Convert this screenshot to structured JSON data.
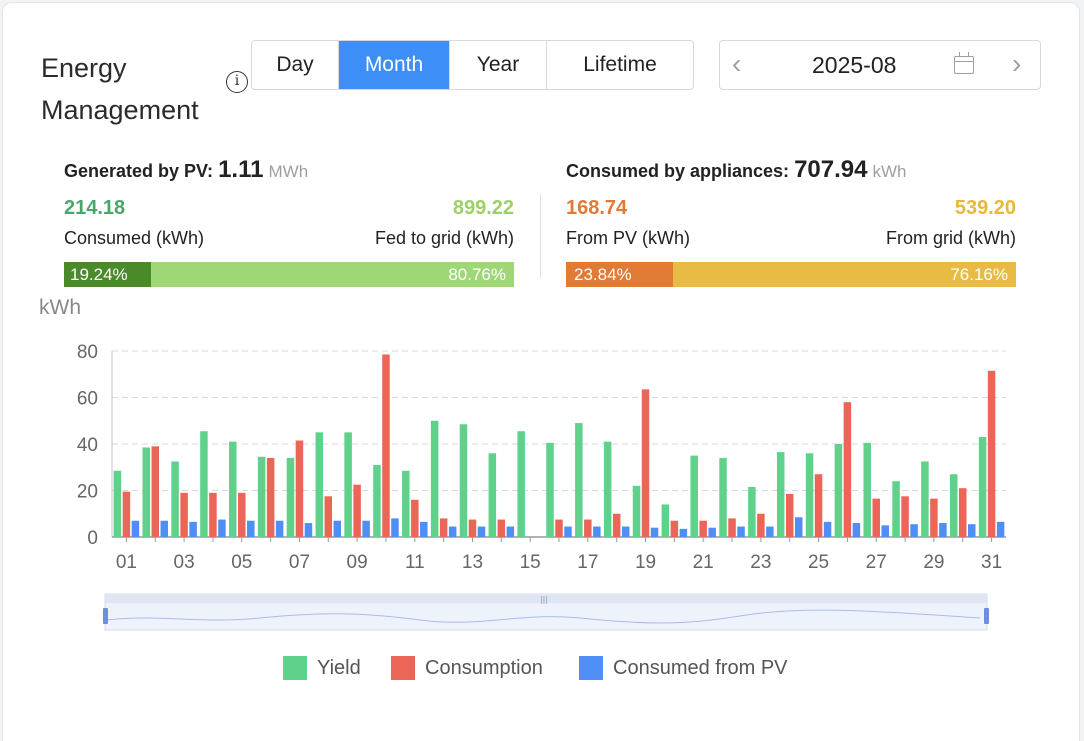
{
  "header": {
    "title_line1": "Energy",
    "title_line2": "Management",
    "info_icon": "info-icon",
    "tabs": [
      {
        "label": "Day",
        "active": false
      },
      {
        "label": "Month",
        "active": true
      },
      {
        "label": "Year",
        "active": false
      },
      {
        "label": "Lifetime",
        "active": false
      }
    ],
    "date": "2025-08",
    "prev_icon": "chevron-left-icon",
    "next_icon": "chevron-right-icon",
    "calendar_icon": "calendar-icon"
  },
  "pv": {
    "label": "Generated by PV:",
    "value": "1.11",
    "unit": "MWh",
    "consumed_value": "214.18",
    "consumed_label": "Consumed (kWh)",
    "fed_value": "899.22",
    "fed_label": "Fed to grid (kWh)",
    "consumed_pct": "19.24%",
    "fed_pct": "80.76%",
    "consumed_fraction": 0.1924,
    "colors": {
      "consumed_text": "#4aa56b",
      "fed_text": "#9bd167",
      "consumed_bar": "#4a8a2a",
      "fed_bar": "#9fd776"
    }
  },
  "appliances": {
    "label": "Consumed by appliances:",
    "value": "707.94",
    "unit": "kWh",
    "pv_value": "168.74",
    "pv_label": "From PV (kWh)",
    "grid_value": "539.20",
    "grid_label": "From grid (kWh)",
    "pv_pct": "23.84%",
    "grid_pct": "76.16%",
    "pv_fraction": 0.2384,
    "colors": {
      "pv_text": "#e07a35",
      "grid_text": "#e8b73c",
      "pv_bar": "#e07a35",
      "grid_bar": "#e8bb45"
    }
  },
  "chart_data": {
    "type": "bar",
    "ylabel": "kWh",
    "ylim": [
      0,
      80
    ],
    "yticks": [
      0,
      20,
      40,
      60,
      80
    ],
    "grid": true,
    "legend_position": "bottom",
    "categories": [
      "01",
      "02",
      "03",
      "04",
      "05",
      "06",
      "07",
      "08",
      "09",
      "10",
      "11",
      "12",
      "13",
      "14",
      "15",
      "16",
      "17",
      "18",
      "19",
      "20",
      "21",
      "22",
      "23",
      "24",
      "25",
      "26",
      "27",
      "28",
      "29",
      "30",
      "31"
    ],
    "xtick_labels": [
      "01",
      "03",
      "05",
      "07",
      "09",
      "11",
      "13",
      "15",
      "17",
      "19",
      "21",
      "23",
      "25",
      "27",
      "29",
      "31"
    ],
    "series": [
      {
        "name": "Yield",
        "color": "#5fd18b",
        "values": [
          28.5,
          38.5,
          32.5,
          45.5,
          41,
          34.5,
          34,
          45,
          45,
          31,
          28.5,
          50,
          48.5,
          36,
          45.5,
          40.5,
          49,
          41,
          22,
          14,
          35,
          34,
          21.5,
          36.5,
          36,
          40,
          40.5,
          24,
          32.5,
          27,
          43
        ]
      },
      {
        "name": "Consumption",
        "color": "#eb6657",
        "values": [
          19.5,
          39,
          19,
          19,
          19,
          34,
          41.5,
          17.5,
          22.5,
          78.5,
          16,
          8,
          7.5,
          7.5,
          0,
          7.5,
          7.5,
          10,
          63.5,
          7,
          7,
          8,
          10,
          18.5,
          27,
          58,
          16.5,
          17.5,
          16.5,
          21,
          71.5
        ]
      },
      {
        "name": "Consumed from PV",
        "color": "#4e8ef5",
        "values": [
          7,
          7,
          6.5,
          7.5,
          7,
          7,
          6,
          7,
          7,
          8,
          6.5,
          4.5,
          4.5,
          4.5,
          0,
          4.5,
          4.5,
          4.5,
          4,
          3.5,
          4,
          4.5,
          4.5,
          8.5,
          6.5,
          6,
          5,
          5.5,
          6,
          5.5,
          6.5
        ]
      }
    ]
  },
  "slider": {
    "handle_icon": "drag-handle-icon"
  }
}
